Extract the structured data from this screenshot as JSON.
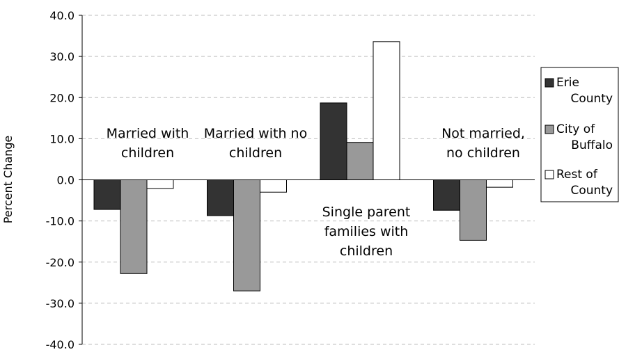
{
  "chart_data": {
    "type": "bar",
    "title": "",
    "xlabel": "",
    "ylabel": "Percent Change",
    "ylim": [
      -40,
      40
    ],
    "yticks": [
      "40.0",
      "30.0",
      "20.0",
      "10.0",
      "0.0",
      "-10.0",
      "-20.0",
      "-30.0",
      "-40.0"
    ],
    "categories": [
      [
        "Married with",
        "children"
      ],
      [
        "Married with no",
        "children"
      ],
      [
        "Single parent",
        "families with",
        "children"
      ],
      [
        "Not married,",
        "no children"
      ]
    ],
    "series": [
      {
        "name": [
          "Erie",
          "County"
        ],
        "color": "#333333",
        "values": [
          -7.2,
          -8.7,
          18.7,
          -7.4
        ]
      },
      {
        "name": [
          "City of",
          "Buffalo"
        ],
        "color": "#999999",
        "values": [
          -22.8,
          -27.0,
          9.1,
          -14.7
        ]
      },
      {
        "name": [
          "Rest of",
          "County"
        ],
        "color": "#ffffff",
        "values": [
          -2.1,
          -3.0,
          33.6,
          -1.8
        ]
      }
    ],
    "grid": true,
    "legend_position": "right"
  }
}
